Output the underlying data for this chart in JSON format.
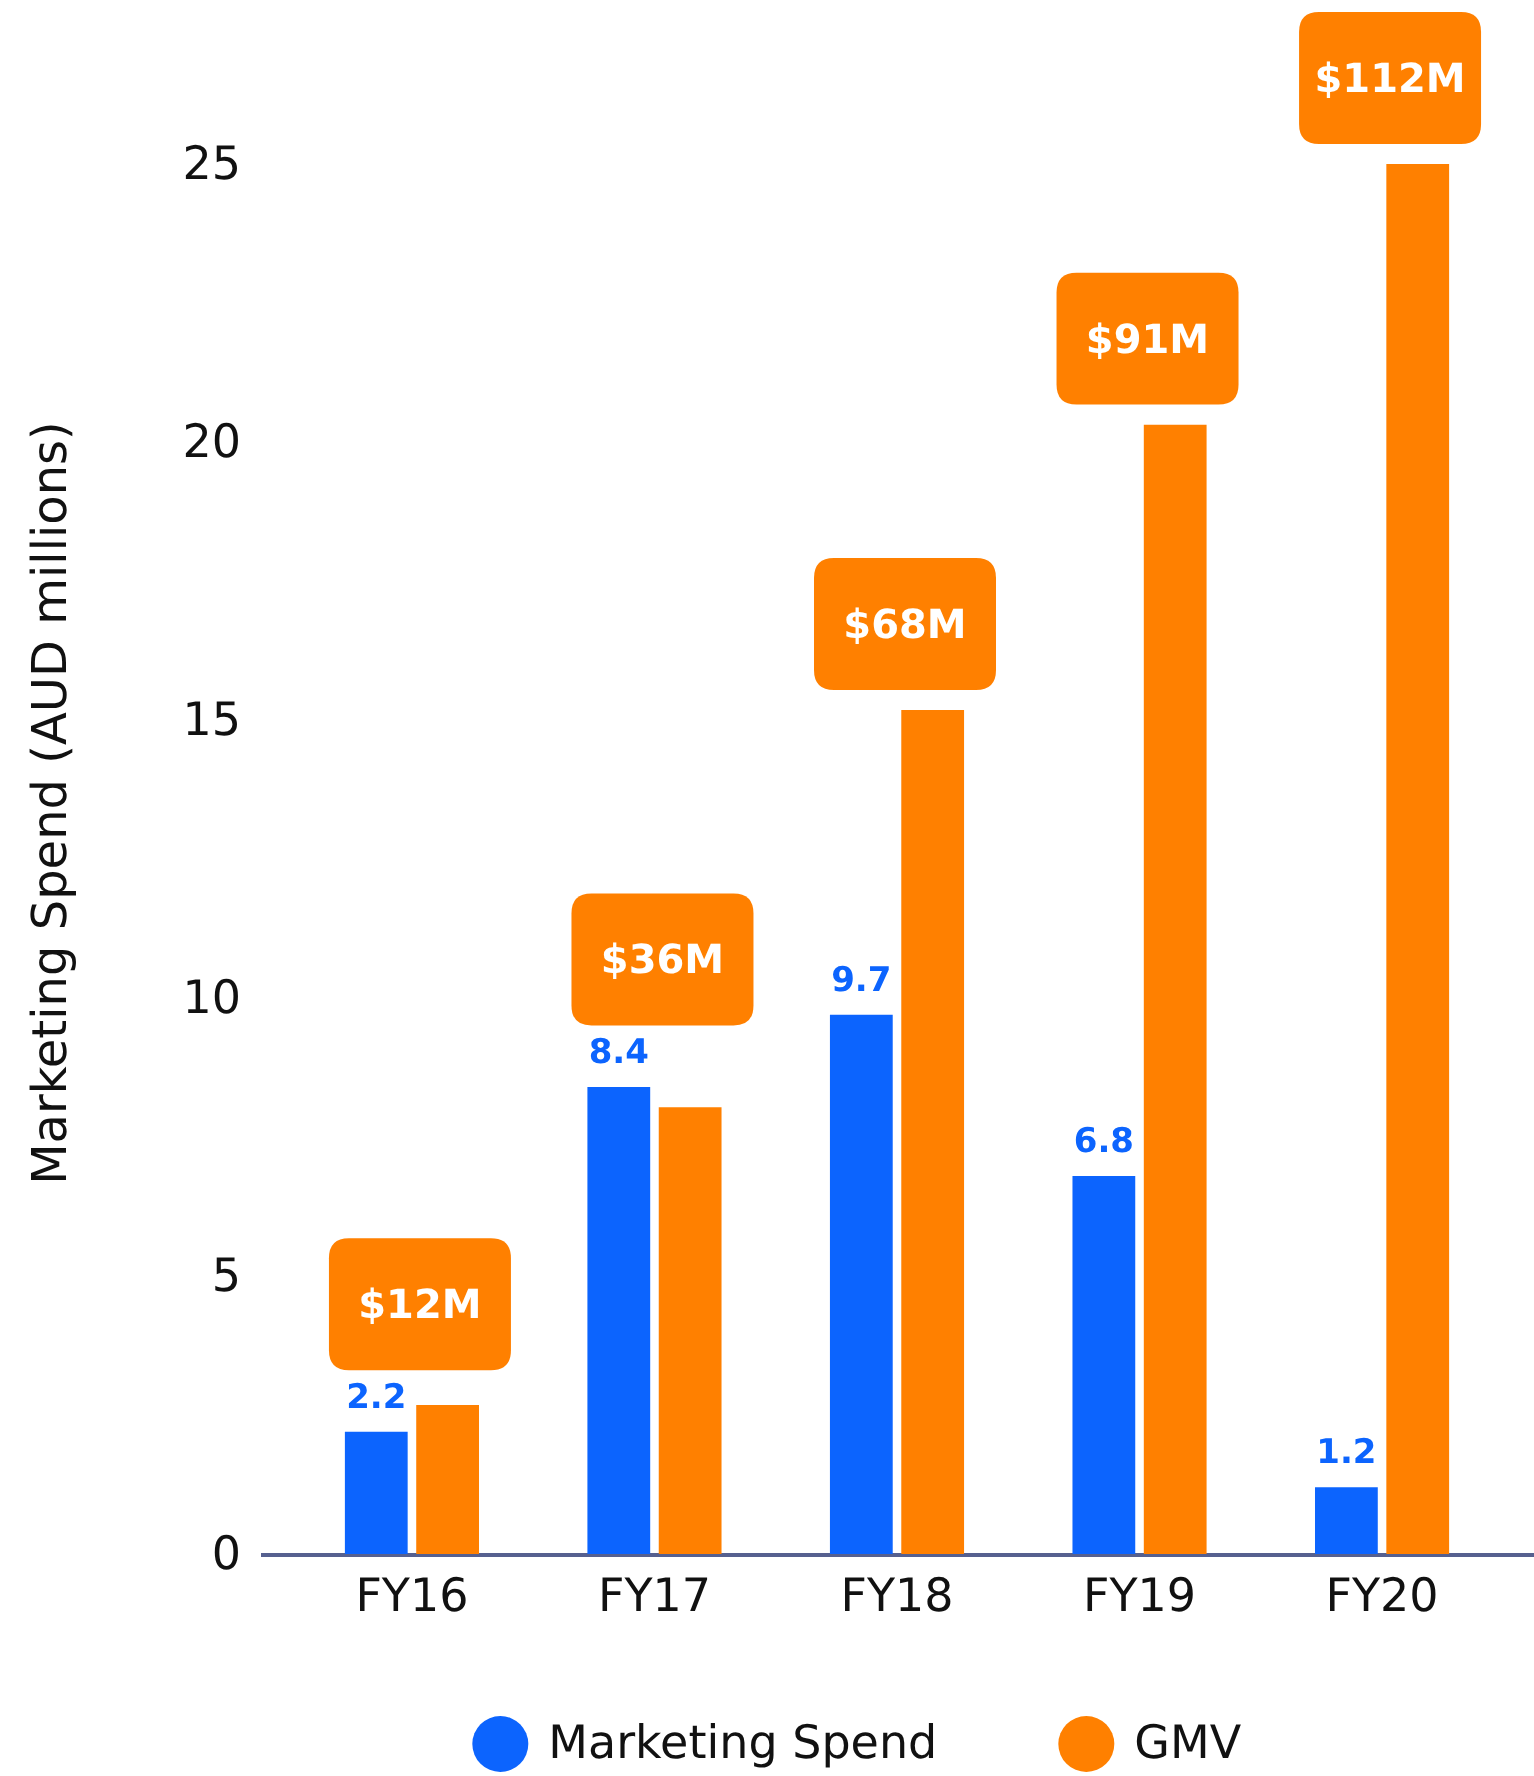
{
  "chart_data": {
    "type": "bar",
    "ylabel": "Marketing Spend (AUD millions)",
    "categories": [
      "FY16",
      "FY17",
      "FY18",
      "FY19",
      "FY20"
    ],
    "series": [
      {
        "name": "Marketing Spend",
        "color": "#0c64fe",
        "values": [
          2.2,
          8.4,
          9.7,
          6.8,
          1.2
        ],
        "value_labels": [
          "2.2",
          "8.4",
          "9.7",
          "6.8",
          "1.2"
        ]
      },
      {
        "name": "GMV",
        "color": "#ff8000",
        "axis": "y2",
        "values": [
          12,
          36,
          68,
          91,
          112
        ],
        "value_labels": [
          "$12M",
          "$36M",
          "$68M",
          "$91M",
          "$112M"
        ]
      }
    ],
    "ylim": [
      0,
      25
    ],
    "yticks": [
      0,
      5,
      10,
      15,
      20,
      25
    ],
    "legend": "bottom",
    "tick_labels": "xy"
  }
}
